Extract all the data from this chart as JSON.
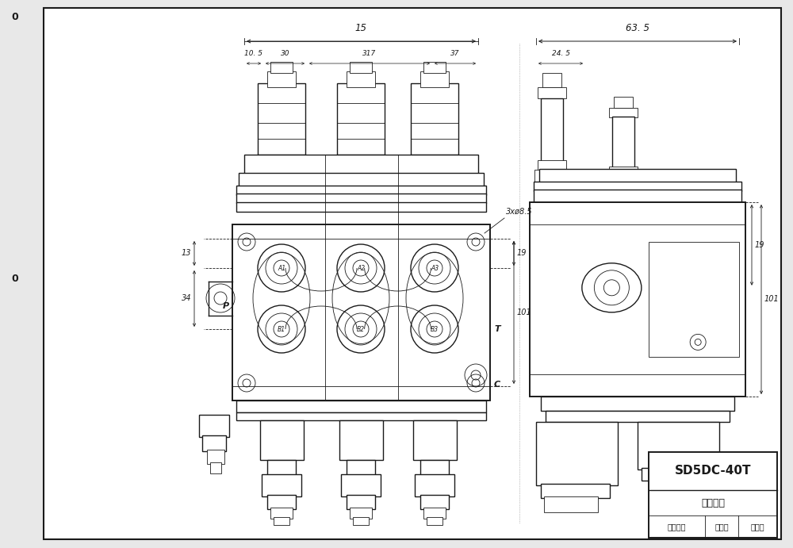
{
  "bg_color": "#e8e8e8",
  "drawing_bg": "#ffffff",
  "line_color": "#1a1a1a",
  "title_block_model": "SD5DC-40T",
  "title_row2": "图纸编号",
  "title_row3_left": "设备标号",
  "title_row3_mid": "版本号",
  "title_row3_right": "版本号",
  "note_3x": "3xø8.5",
  "label_P": "P",
  "label_T": "T",
  "label_C": "C",
  "label_A1": "A1",
  "label_A2": "A2",
  "label_A3": "A3",
  "label_B1": "B1",
  "label_B2": "B2",
  "label_B3": "B3",
  "dim_15": "15",
  "dim_10_5": "10. 5",
  "dim_30": "30",
  "dim_317": "317",
  "dim_37": "37",
  "dim_63_5": "63. 5",
  "dim_24_5": "24. 5",
  "dim_13": "13",
  "dim_34": "34",
  "dim_19": "19",
  "dim_101": "101"
}
